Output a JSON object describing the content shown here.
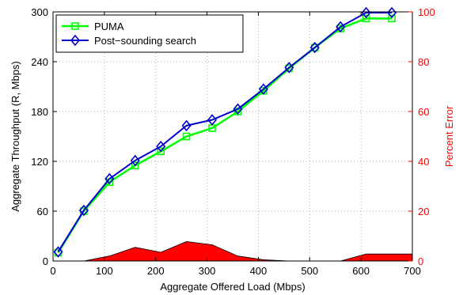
{
  "chart_data": {
    "type": "line",
    "title": "",
    "xlabel": "Aggregate Offered Load (Mbps)",
    "ylabel": "Aggregate Throughput (R, Mbps)",
    "ylabel_right": "Percent Error",
    "xlim": [
      0,
      700
    ],
    "ylim": [
      0,
      300
    ],
    "ylim_right": [
      0,
      100
    ],
    "x_ticks": [
      "0",
      "100",
      "200",
      "300",
      "400",
      "500",
      "600",
      "700"
    ],
    "y_ticks": [
      "0",
      "60",
      "120",
      "180",
      "240",
      "300"
    ],
    "y_ticks_right": [
      "0",
      "20",
      "40",
      "60",
      "80",
      "100"
    ],
    "grid": true,
    "legend_position": "top-left",
    "colors": {
      "puma": "#00ff00",
      "post_sounding": "#0000cc",
      "error_fill": "#ff0000",
      "right_axis": "#ff0000"
    },
    "series": [
      {
        "name": "PUMA",
        "marker": "square",
        "x": [
          10,
          60,
          110,
          160,
          210,
          260,
          310,
          360,
          410,
          460,
          510,
          560,
          610,
          660
        ],
        "y": [
          10,
          60,
          95,
          115,
          132,
          150,
          160,
          180,
          205,
          232,
          257,
          280,
          292,
          292
        ]
      },
      {
        "name": "Post−sounding search",
        "marker": "diamond",
        "x": [
          10,
          60,
          110,
          160,
          210,
          260,
          310,
          360,
          410,
          460,
          510,
          560,
          610,
          660
        ],
        "y": [
          11,
          61,
          99,
          121,
          138,
          163,
          170,
          183,
          207,
          233,
          257,
          282,
          299,
          299
        ]
      }
    ],
    "error_area": {
      "axis": "right",
      "x": [
        60,
        110,
        160,
        210,
        260,
        310,
        360,
        410,
        460,
        510,
        560,
        610,
        700
      ],
      "y": [
        0,
        2,
        5.5,
        3.5,
        7.8,
        6.5,
        2,
        0.5,
        0,
        0,
        0,
        2.8,
        2.8
      ]
    }
  }
}
